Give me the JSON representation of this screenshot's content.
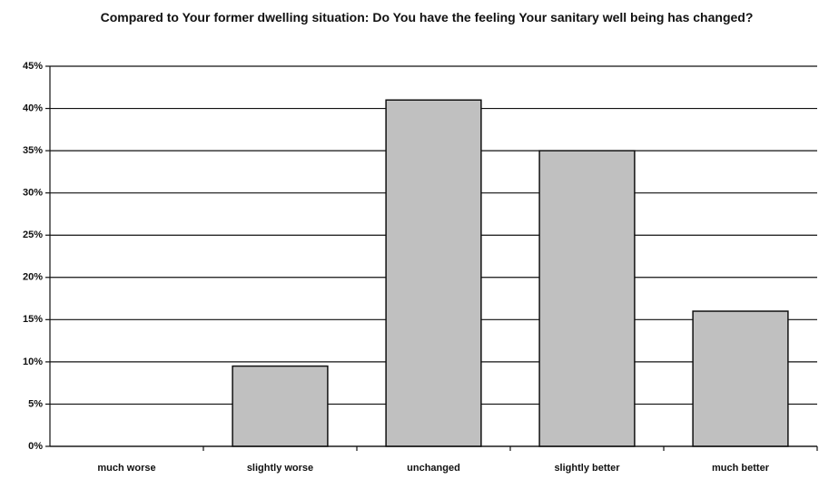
{
  "chart_data": {
    "type": "bar",
    "title": "Compared to Your former dwelling situation: Do You have the feeling Your sanitary well being has changed?",
    "categories": [
      "much worse",
      "slightly worse",
      "unchanged",
      "slightly better",
      "much better"
    ],
    "values": [
      0,
      9.5,
      41,
      35,
      16
    ],
    "color": "#c0c0c0",
    "ylim": [
      0,
      45
    ],
    "yticks": [
      {
        "value": 0,
        "label": "0%"
      },
      {
        "value": 5,
        "label": "5%"
      },
      {
        "value": 10,
        "label": "10%"
      },
      {
        "value": 15,
        "label": "15%"
      },
      {
        "value": 20,
        "label": "20%"
      },
      {
        "value": 25,
        "label": "25%"
      },
      {
        "value": 30,
        "label": "30%"
      },
      {
        "value": 35,
        "label": "35%"
      },
      {
        "value": 40,
        "label": "40%"
      },
      {
        "value": 45,
        "label": "45%"
      }
    ],
    "grid": true
  }
}
